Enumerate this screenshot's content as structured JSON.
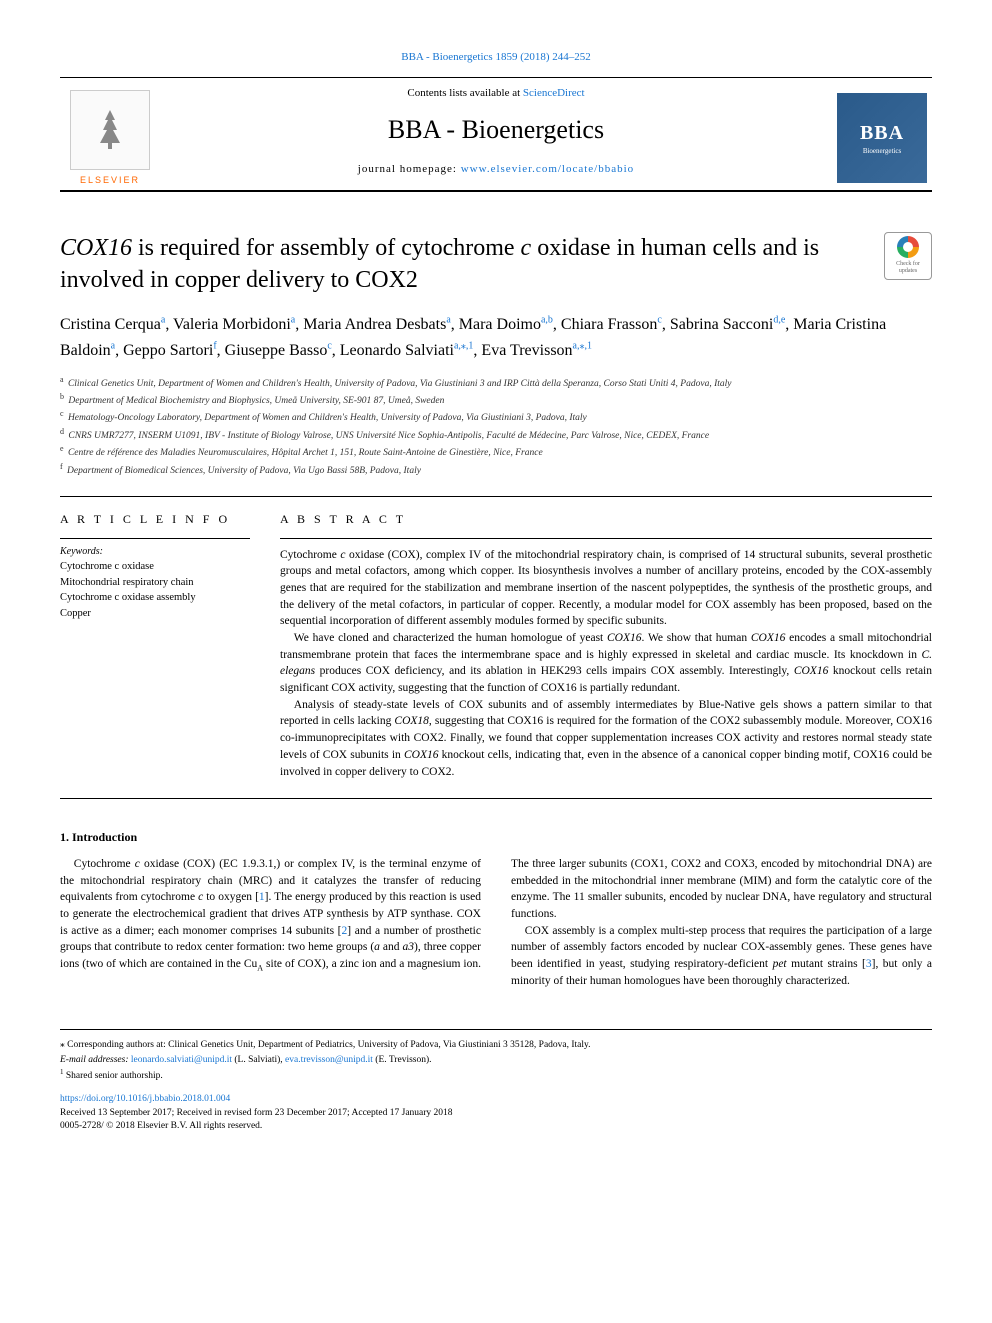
{
  "journal_ref_text": "BBA - Bioenergetics 1859 (2018) 244–252",
  "header": {
    "contents_prefix": "Contents lists available at ",
    "contents_link": "ScienceDirect",
    "journal_name": "BBA - Bioenergetics",
    "homepage_prefix": "journal homepage: ",
    "homepage_link": "www.elsevier.com/locate/bbabio",
    "elsevier_label": "ELSEVIER",
    "bba_big": "BBA",
    "bba_sub": "Bioenergetics"
  },
  "check_updates": {
    "line1": "Check for",
    "line2": "updates"
  },
  "title_html": "<span class=\"italic\">COX16</span> is required for assembly of cytochrome <span class=\"italic\">c</span> oxidase in human cells and is involved in copper delivery to COX2",
  "authors_html": "Cristina Cerqua<sup><a>a</a></sup>, Valeria Morbidoni<sup><a>a</a></sup>, Maria Andrea Desbats<sup><a>a</a></sup>, Mara Doimo<sup><a>a</a>,<a>b</a></sup>, Chiara Frasson<sup><a>c</a></sup>, Sabrina Sacconi<sup><a>d</a>,<a>e</a></sup>, Maria Cristina Baldoin<sup><a>a</a></sup>, Geppo Sartori<sup><a>f</a></sup>, Giuseppe Basso<sup><a>c</a></sup>, Leonardo Salviati<sup><a>a</a>,⁎,<a>1</a></sup>, Eva Trevisson<sup><a>a</a>,⁎,<a>1</a></sup>",
  "affiliations": [
    {
      "sup": "a",
      "text": "Clinical Genetics Unit, Department of Women and Children's Health, University of Padova, Via Giustiniani 3 and IRP Città della Speranza, Corso Stati Uniti 4, Padova, Italy"
    },
    {
      "sup": "b",
      "text": "Department of Medical Biochemistry and Biophysics, Umeå University, SE-901 87, Umeå, Sweden"
    },
    {
      "sup": "c",
      "text": "Hematology-Oncology Laboratory, Department of Women and Children's Health, University of Padova, Via Giustiniani 3, Padova, Italy"
    },
    {
      "sup": "d",
      "text": "CNRS UMR7277, INSERM U1091, IBV - Institute of Biology Valrose, UNS Université Nice Sophia-Antipolis, Faculté de Médecine, Parc Valrose, Nice, CEDEX, France"
    },
    {
      "sup": "e",
      "text": "Centre de référence des Maladies Neuromusculaires, Hôpital Archet 1, 151, Route Saint-Antoine de Ginestière, Nice, France"
    },
    {
      "sup": "f",
      "text": "Department of Biomedical Sciences, University of Padova, Via Ugo Bassi 58B, Padova, Italy"
    }
  ],
  "article_info_head": "A R T I C L E  I N F O",
  "abstract_head": "A B S T R A C T",
  "keywords_label": "Keywords:",
  "keywords": [
    "Cytochrome c oxidase",
    "Mitochondrial respiratory chain",
    "Cytochrome c oxidase assembly",
    "Copper"
  ],
  "abstract_paragraphs_html": [
    "Cytochrome <span class=\"italic\">c</span> oxidase (COX), complex IV of the mitochondrial respiratory chain, is comprised of 14 structural subunits, several prosthetic groups and metal cofactors, among which copper. Its biosynthesis involves a number of ancillary proteins, encoded by the COX-assembly genes that are required for the stabilization and membrane insertion of the nascent polypeptides, the synthesis of the prosthetic groups, and the delivery of the metal cofactors, in particular of copper. Recently, a modular model for COX assembly has been proposed, based on the sequential incorporation of different assembly modules formed by specific subunits.",
    "We have cloned and characterized the human homologue of yeast <span class=\"italic\">COX16</span>. We show that human <span class=\"italic\">COX16</span> encodes a small mitochondrial transmembrane protein that faces the intermembrane space and is highly expressed in skeletal and cardiac muscle. Its knockdown in <span class=\"italic\">C. elegans</span> produces COX deficiency, and its ablation in HEK293 cells impairs COX assembly. Interestingly, <span class=\"italic\">COX16</span> knockout cells retain significant COX activity, suggesting that the function of COX16 is partially redundant.",
    "Analysis of steady-state levels of COX subunits and of assembly intermediates by Blue-Native gels shows a pattern similar to that reported in cells lacking <span class=\"italic\">COX18</span>, suggesting that COX16 is required for the formation of the COX2 subassembly module. Moreover, COX16 co-immunoprecipitates with COX2. Finally, we found that copper supplementation increases COX activity and restores normal steady state levels of COX subunits in <span class=\"italic\">COX16</span> knockout cells, indicating that, even in the absence of a canonical copper binding motif, COX16 could be involved in copper delivery to COX2."
  ],
  "intro_head": "1. Introduction",
  "intro_html": "<p>Cytochrome <span class=\"italic\">c</span> oxidase (COX) (EC 1.9.3.1,) or complex IV, is the terminal enzyme of the mitochondrial respiratory chain (MRC) and it catalyzes the transfer of reducing equivalents from cytochrome <span class=\"italic\">c</span> to oxygen [<a>1</a>]. The energy produced by this reaction is used to generate the electrochemical gradient that drives ATP synthesis by ATP synthase. COX is active as a dimer; each monomer comprises 14 subunits [<a>2</a>] and a number of prosthetic groups that contribute to redox center formation: two heme groups (<span class=\"italic\">a</span> and <span class=\"italic\">a3</span>), three copper ions (two of which are contained in the Cu<sub>A</sub> site of COX), a zinc ion and a magnesium ion. The three larger subunits (COX1, COX2 and COX3, encoded by mitochondrial DNA) are embedded in the mitochondrial inner membrane (MIM) and form the catalytic core of the enzyme. The 11 smaller subunits, encoded by nuclear DNA, have regulatory and structural functions.</p><p>COX assembly is a complex multi-step process that requires the participation of a large number of assembly factors encoded by nuclear COX-assembly genes. These genes have been identified in yeast, studying respiratory-deficient <span class=\"italic\">pet</span> mutant strains [<a>3</a>], but only a minority of their human homologues have been thoroughly characterized.</p>",
  "footer": {
    "corresponding": "⁎ Corresponding authors at: Clinical Genetics Unit, Department of Pediatrics, University of Padova, Via Giustiniani 3 35128, Padova, Italy.",
    "email_prefix": "E-mail addresses: ",
    "email1": "leonardo.salviati@unipd.it",
    "email1_name": " (L. Salviati), ",
    "email2": "eva.trevisson@unipd.it",
    "email2_name": " (E. Trevisson).",
    "shared": "Shared senior authorship.",
    "doi": "https://doi.org/10.1016/j.bbabio.2018.01.004",
    "received": "Received 13 September 2017; Received in revised form 23 December 2017; Accepted 17 January 2018",
    "copyright": "0005-2728/ © 2018 Elsevier B.V. All rights reserved."
  },
  "colors": {
    "link": "#1976d2",
    "elsevier_orange": "#ff6600",
    "bba_bg": "#2a5a8a",
    "text": "#000000",
    "background": "#ffffff"
  },
  "typography": {
    "title_fontsize": 24,
    "journal_name_fontsize": 26,
    "authors_fontsize": 16,
    "body_fontsize": 11.5,
    "affil_fontsize": 9.5,
    "footer_fontsize": 9.5
  }
}
